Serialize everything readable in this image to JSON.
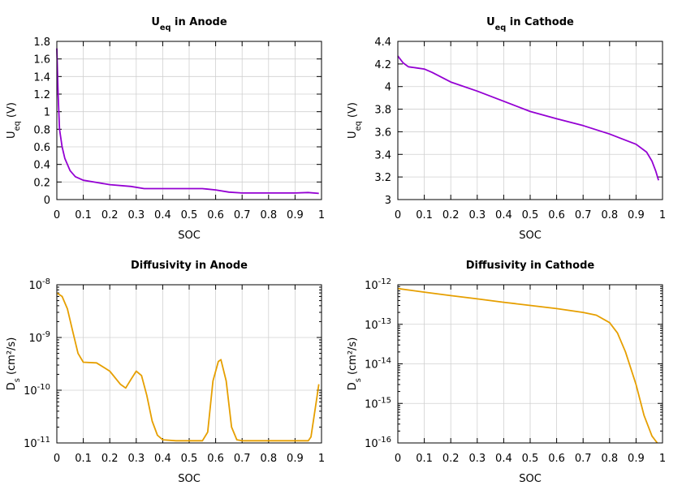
{
  "chart_data": [
    {
      "type": "line",
      "title": "U_eq in Anode",
      "title_main": "U",
      "title_sub": "eq",
      "title_rest": " in Anode",
      "xlabel": "SOC",
      "ylabel_main": "U",
      "ylabel_sub": "eq",
      "ylabel_rest": " (V)",
      "xlim": [
        0,
        1
      ],
      "ylim": [
        0,
        1.8
      ],
      "yscale": "linear",
      "xticks": [
        0,
        0.1,
        0.2,
        0.3,
        0.4,
        0.5,
        0.6,
        0.7,
        0.8,
        0.9,
        1
      ],
      "yticks": [
        0,
        0.2,
        0.4,
        0.6,
        0.8,
        1,
        1.2,
        1.4,
        1.6,
        1.8
      ],
      "grid": true,
      "color": "#9400d3",
      "x": [
        0,
        0.005,
        0.01,
        0.02,
        0.03,
        0.05,
        0.07,
        0.1,
        0.15,
        0.2,
        0.28,
        0.33,
        0.4,
        0.55,
        0.6,
        0.65,
        0.7,
        0.9,
        0.95,
        0.99
      ],
      "y": [
        1.72,
        1.2,
        0.8,
        0.6,
        0.47,
        0.33,
        0.26,
        0.22,
        0.195,
        0.17,
        0.15,
        0.125,
        0.125,
        0.125,
        0.11,
        0.085,
        0.075,
        0.075,
        0.08,
        0.07
      ]
    },
    {
      "type": "line",
      "title": "U_eq in Cathode",
      "title_main": "U",
      "title_sub": "eq",
      "title_rest": " in Cathode",
      "xlabel": "SOC",
      "ylabel_main": "U",
      "ylabel_sub": "eq",
      "ylabel_rest": " (V)",
      "xlim": [
        0,
        1
      ],
      "ylim": [
        3,
        4.4
      ],
      "yscale": "linear",
      "xticks": [
        0,
        0.1,
        0.2,
        0.3,
        0.4,
        0.5,
        0.6,
        0.7,
        0.8,
        0.9,
        1
      ],
      "yticks": [
        3,
        3.2,
        3.4,
        3.6,
        3.8,
        4,
        4.2,
        4.4
      ],
      "grid": true,
      "color": "#9400d3",
      "x": [
        0,
        0.02,
        0.04,
        0.07,
        0.1,
        0.13,
        0.2,
        0.3,
        0.4,
        0.5,
        0.6,
        0.7,
        0.8,
        0.9,
        0.94,
        0.96,
        0.975,
        0.985
      ],
      "y": [
        4.27,
        4.21,
        4.175,
        4.165,
        4.155,
        4.125,
        4.04,
        3.96,
        3.87,
        3.78,
        3.715,
        3.655,
        3.58,
        3.49,
        3.42,
        3.34,
        3.25,
        3.17
      ]
    },
    {
      "type": "line",
      "title": "Diffusivity in Anode",
      "title_main": "Diffusivity in Anode",
      "title_sub": "",
      "title_rest": "",
      "xlabel": "SOC",
      "ylabel_main": "D",
      "ylabel_sub": "s",
      "ylabel_rest": " (cm²/s)",
      "xlim": [
        0,
        1
      ],
      "ylim": [
        1e-11,
        1e-08
      ],
      "yscale": "log",
      "xticks": [
        0,
        0.1,
        0.2,
        0.3,
        0.4,
        0.5,
        0.6,
        0.7,
        0.8,
        0.9,
        1
      ],
      "yticks": [
        -11,
        -10,
        -9,
        -8
      ],
      "grid": true,
      "color": "#e69f00",
      "x": [
        0,
        0.02,
        0.04,
        0.06,
        0.08,
        0.1,
        0.15,
        0.2,
        0.24,
        0.26,
        0.28,
        0.3,
        0.32,
        0.34,
        0.36,
        0.38,
        0.4,
        0.45,
        0.55,
        0.57,
        0.59,
        0.61,
        0.62,
        0.64,
        0.66,
        0.68,
        0.7,
        0.95,
        0.96,
        0.98,
        0.99
      ],
      "y": [
        7e-09,
        6e-09,
        3.5e-09,
        1.3e-09,
        5e-10,
        3.4e-10,
        3.3e-10,
        2.3e-10,
        1.3e-10,
        1.1e-10,
        1.6e-10,
        2.3e-10,
        1.9e-10,
        8e-11,
        2.6e-11,
        1.4e-11,
        1.15e-11,
        1.1e-11,
        1.1e-11,
        1.6e-11,
        1.5e-10,
        3.5e-10,
        3.8e-10,
        1.5e-10,
        2e-11,
        1.15e-11,
        1.1e-11,
        1.1e-11,
        1.3e-11,
        6e-11,
        1.3e-10
      ]
    },
    {
      "type": "line",
      "title": "Diffusivity in Cathode",
      "title_main": "Diffusivity in Cathode",
      "title_sub": "",
      "title_rest": "",
      "xlabel": "SOC",
      "ylabel_main": "D",
      "ylabel_sub": "s",
      "ylabel_rest": " (cm²/s)",
      "xlim": [
        0,
        1
      ],
      "ylim": [
        1e-16,
        1e-12
      ],
      "yscale": "log",
      "xticks": [
        0,
        0.1,
        0.2,
        0.3,
        0.4,
        0.5,
        0.6,
        0.7,
        0.8,
        0.9,
        1
      ],
      "yticks": [
        -16,
        -15,
        -14,
        -13,
        -12
      ],
      "grid": true,
      "color": "#e69f00",
      "x": [
        0,
        0.1,
        0.2,
        0.3,
        0.4,
        0.5,
        0.6,
        0.7,
        0.75,
        0.8,
        0.83,
        0.86,
        0.9,
        0.93,
        0.96,
        0.98
      ],
      "y": [
        8e-13,
        6.5e-13,
        5.3e-13,
        4.4e-13,
        3.6e-13,
        3e-13,
        2.5e-13,
        2e-13,
        1.7e-13,
        1.1e-13,
        6e-14,
        2e-14,
        3e-15,
        5e-16,
        1.5e-16,
        1e-16
      ]
    }
  ]
}
